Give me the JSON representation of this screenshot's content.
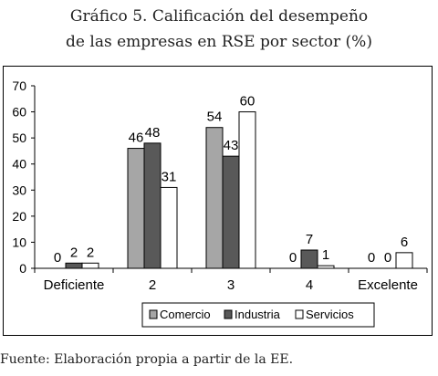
{
  "title": {
    "line1": "Gráfico 5. Calificación del desempeño",
    "line2": "de las empresas en RSE por sector (%)"
  },
  "source": "Fuente: Elaboración propia a partir de la EE.",
  "chart_data": {
    "type": "bar",
    "categories": [
      "Deficiente",
      "2",
      "3",
      "4",
      "Excelente"
    ],
    "series": [
      {
        "name": "Comercio",
        "values": [
          0,
          46,
          54,
          0,
          0
        ],
        "color": "#a6a6a6"
      },
      {
        "name": "Industria",
        "values": [
          2,
          48,
          43,
          7,
          0
        ],
        "color": "#595959"
      },
      {
        "name": "Servicios",
        "values": [
          2,
          31,
          60,
          1,
          6
        ],
        "color": "#ffffff"
      }
    ],
    "ylim": [
      0,
      70
    ],
    "yticks": [
      0,
      10,
      20,
      30,
      40,
      50,
      60,
      70
    ],
    "grid": false,
    "legend_position": "bottom",
    "data_labels": true
  }
}
